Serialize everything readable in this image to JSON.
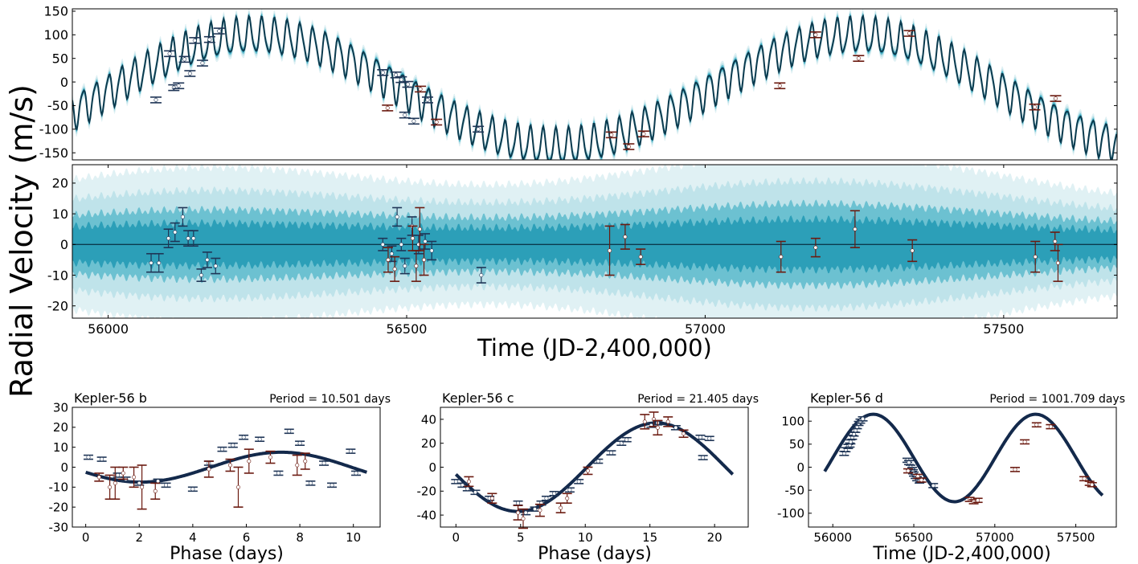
{
  "figure": {
    "ylabel_shared": "Radial Velocity (m/s)",
    "xlabel_time": "Time (JD-2,400,000)"
  },
  "colors": {
    "model_line": "#0b3a4e",
    "band_dark": "#2c9fb8",
    "band_mid": "#6cc1d1",
    "band_light": "#bfe3ea",
    "band_faint": "#e0f1f4",
    "inst_red": "#6b1a10",
    "inst_blue": "#1f3556",
    "kepler_curve": "#13294b"
  },
  "chart_data": [
    {
      "id": "rv_time_series",
      "type": "line",
      "title": "",
      "xlabel": "",
      "ylabel": "",
      "xlim": [
        55940,
        57690
      ],
      "ylim": [
        -165,
        155
      ],
      "yticks": [
        -150,
        -100,
        -50,
        0,
        50,
        100,
        150
      ],
      "xticks": [],
      "model": {
        "mean_offset": 0,
        "long_period": 1001.709,
        "long_amp": 118,
        "long_phase_peak": 56250,
        "short_period": 21.405,
        "short_amp": 36,
        "short_period_2": 10.501,
        "short_amp_2": 7
      },
      "series": [
        {
          "instrument": "blue",
          "points": [
            [
              56080,
              -38
            ],
            [
              56103,
              60
            ],
            [
              56110,
              -12
            ],
            [
              56118,
              -8
            ],
            [
              56128,
              48
            ],
            [
              56137,
              18
            ],
            [
              56145,
              88
            ],
            [
              56158,
              40
            ],
            [
              56170,
              90
            ],
            [
              56186,
              108
            ],
            [
              56460,
              20
            ],
            [
              56482,
              15
            ],
            [
              56491,
              5
            ],
            [
              56497,
              -70
            ],
            [
              56502,
              -5
            ],
            [
              56512,
              -83
            ],
            [
              56535,
              -38
            ],
            [
              56620,
              -100
            ]
          ]
        },
        {
          "instrument": "red",
          "points": [
            [
              56468,
              -55
            ],
            [
              56523,
              -15
            ],
            [
              56550,
              -85
            ],
            [
              56843,
              -112
            ],
            [
              56872,
              -137
            ],
            [
              56897,
              -110
            ],
            [
              57125,
              -8
            ],
            [
              57185,
              100
            ],
            [
              57257,
              50
            ],
            [
              57342,
              103
            ],
            [
              57552,
              -53
            ],
            [
              57587,
              -35
            ]
          ]
        }
      ]
    },
    {
      "id": "rv_residuals",
      "type": "scatter",
      "title": "",
      "xlabel": "Time (JD-2,400,000)",
      "ylabel": "",
      "xlim": [
        55940,
        57690
      ],
      "ylim": [
        -24,
        26
      ],
      "yticks": [
        -20,
        -10,
        0,
        10,
        20
      ],
      "xticks": [
        56000,
        56500,
        57000,
        57500
      ],
      "series": [
        {
          "instrument": "blue",
          "points": [
            [
              56072,
              -6,
              3
            ],
            [
              56085,
              -6,
              3
            ],
            [
              56101,
              2,
              3
            ],
            [
              56112,
              4,
              3
            ],
            [
              56125,
              9,
              3
            ],
            [
              56134,
              2,
              2.5
            ],
            [
              56143,
              2,
              2.5
            ],
            [
              56156,
              -10,
              2
            ],
            [
              56166,
              -5,
              2.5
            ],
            [
              56180,
              -7,
              2.5
            ],
            [
              56460,
              0,
              2
            ],
            [
              56475,
              -3,
              2.5
            ],
            [
              56484,
              9,
              3
            ],
            [
              56491,
              0,
              2
            ],
            [
              56497,
              -7,
              2.5
            ],
            [
              56509,
              6,
              3
            ],
            [
              56520,
              0,
              3
            ],
            [
              56531,
              1,
              2.5
            ],
            [
              56542,
              -2,
              3
            ],
            [
              56625,
              -10,
              2.5
            ]
          ]
        },
        {
          "instrument": "red",
          "points": [
            [
              56469,
              -5,
              4
            ],
            [
              56480,
              -8,
              4
            ],
            [
              56510,
              2,
              4
            ],
            [
              56516,
              -7,
              5
            ],
            [
              56522,
              5,
              7
            ],
            [
              56529,
              -5,
              5
            ],
            [
              56840,
              -2,
              8
            ],
            [
              56866,
              2.5,
              4
            ],
            [
              56892,
              -4,
              2.5
            ],
            [
              57127,
              -4,
              5
            ],
            [
              57185,
              -1,
              3
            ],
            [
              57251,
              5,
              6
            ],
            [
              57347,
              -2,
              3.5
            ],
            [
              57553,
              -4,
              5
            ],
            [
              57586,
              1,
              3
            ],
            [
              57591,
              -6,
              6
            ]
          ]
        }
      ]
    },
    {
      "id": "kepler56b",
      "type": "scatter",
      "title": "Kepler-56 b",
      "subtitle": "Period = 10.501 days",
      "xlabel": "Phase (days)",
      "ylabel": "",
      "xlim": [
        -0.5,
        11
      ],
      "ylim": [
        -30,
        30
      ],
      "yticks": [
        -30,
        -20,
        -10,
        0,
        10,
        20,
        30
      ],
      "xticks": [
        0,
        2,
        4,
        6,
        8,
        10
      ],
      "curve": {
        "period": 10.501,
        "amp": 7.5,
        "peak_phase": 7.3
      },
      "series": [
        {
          "instrument": "blue",
          "points": [
            [
              0.1,
              5
            ],
            [
              0.6,
              4
            ],
            [
              1.2,
              -4
            ],
            [
              1.5,
              -6
            ],
            [
              2.0,
              -8
            ],
            [
              2.7,
              -7
            ],
            [
              3.0,
              -9
            ],
            [
              4.0,
              -11
            ],
            [
              4.6,
              2
            ],
            [
              5.1,
              9
            ],
            [
              5.5,
              11
            ],
            [
              5.9,
              15
            ],
            [
              6.5,
              14
            ],
            [
              7.2,
              -3
            ],
            [
              7.6,
              18
            ],
            [
              8.0,
              12
            ],
            [
              8.4,
              -8
            ],
            [
              8.9,
              2
            ],
            [
              9.2,
              -9
            ],
            [
              9.9,
              8
            ],
            [
              10.1,
              -3
            ]
          ]
        },
        {
          "instrument": "red",
          "points": [
            [
              0.5,
              -5,
              2
            ],
            [
              0.9,
              -10,
              6
            ],
            [
              1.1,
              -8,
              8
            ],
            [
              1.4,
              -3,
              3
            ],
            [
              1.8,
              -5,
              5
            ],
            [
              2.1,
              -10,
              11
            ],
            [
              2.6,
              -12,
              4
            ],
            [
              4.6,
              -1,
              4
            ],
            [
              5.4,
              1,
              3
            ],
            [
              5.7,
              -10,
              10
            ],
            [
              6.1,
              3,
              6
            ],
            [
              6.9,
              5,
              3
            ],
            [
              7.9,
              1,
              5
            ],
            [
              8.2,
              3,
              4
            ]
          ]
        }
      ]
    },
    {
      "id": "kepler56c",
      "type": "scatter",
      "title": "Kepler-56 c",
      "subtitle": "Period = 21.405 days",
      "xlabel": "Phase (days)",
      "ylabel": "",
      "xlim": [
        -1.2,
        22.6
      ],
      "ylim": [
        -50,
        50
      ],
      "yticks": [
        -40,
        -20,
        0,
        20,
        40
      ],
      "xticks": [
        0,
        5,
        10,
        15,
        20
      ],
      "curve": {
        "period": 21.405,
        "amp": 37,
        "peak_phase": 15.5
      },
      "series": [
        {
          "instrument": "blue",
          "points": [
            [
              0,
              -12
            ],
            [
              0.5,
              -15
            ],
            [
              0.9,
              -18
            ],
            [
              1.5,
              -21
            ],
            [
              2.6,
              -26
            ],
            [
              4.8,
              -30
            ],
            [
              5.4,
              -38
            ],
            [
              6.1,
              -35
            ],
            [
              6.6,
              -30
            ],
            [
              7.0,
              -26
            ],
            [
              7.6,
              -22
            ],
            [
              8.8,
              -19
            ],
            [
              9.5,
              -12
            ],
            [
              11.0,
              5
            ],
            [
              12.0,
              12
            ],
            [
              12.8,
              20
            ],
            [
              13.2,
              23
            ],
            [
              15.1,
              35
            ],
            [
              15.6,
              37
            ],
            [
              17.0,
              33
            ],
            [
              18.9,
              25
            ],
            [
              19.1,
              8
            ],
            [
              19.6,
              24
            ]
          ]
        },
        {
          "instrument": "red",
          "points": [
            [
              1.0,
              -12,
              4
            ],
            [
              2.8,
              -26,
              4
            ],
            [
              4.8,
              -38,
              6
            ],
            [
              5.2,
              -43,
              8
            ],
            [
              6.5,
              -36,
              5
            ],
            [
              8.1,
              -34,
              4
            ],
            [
              8.6,
              -26,
              4
            ],
            [
              10.2,
              -3,
              3
            ],
            [
              14.6,
              38,
              6
            ],
            [
              15.3,
              40,
              6
            ],
            [
              15.6,
              33,
              6
            ],
            [
              16.4,
              38,
              4
            ],
            [
              17.6,
              28,
              3
            ]
          ]
        }
      ]
    },
    {
      "id": "kepler56d",
      "type": "scatter",
      "title": "Kepler-56 d",
      "subtitle": "Period = 1001.709 days",
      "xlabel": "Time (JD-2,400,000)",
      "ylabel": "",
      "xlim": [
        55850,
        57750
      ],
      "ylim": [
        -130,
        130
      ],
      "yticks": [
        -100,
        -50,
        0,
        50,
        100
      ],
      "xticks": [
        56000,
        56500,
        57000,
        57500
      ],
      "curve": {
        "period": 1001.709,
        "amp": 95,
        "offset": 20,
        "peak_time": 56250,
        "x0": 55950,
        "x1": 57665
      },
      "series": [
        {
          "instrument": "blue",
          "points": [
            [
              56070,
              30
            ],
            [
              56080,
              38
            ],
            [
              56095,
              45
            ],
            [
              56105,
              48
            ],
            [
              56110,
              55
            ],
            [
              56120,
              65
            ],
            [
              56130,
              72
            ],
            [
              56140,
              80
            ],
            [
              56150,
              88
            ],
            [
              56160,
              95
            ],
            [
              56170,
              100
            ],
            [
              56185,
              105
            ],
            [
              56460,
              15
            ],
            [
              56470,
              10
            ],
            [
              56480,
              0
            ],
            [
              56490,
              -5
            ],
            [
              56495,
              -10
            ],
            [
              56500,
              -15
            ],
            [
              56510,
              -20
            ],
            [
              56520,
              -25
            ],
            [
              56535,
              -30
            ],
            [
              56540,
              -28
            ],
            [
              56620,
              -40
            ]
          ]
        },
        {
          "instrument": "red",
          "points": [
            [
              56465,
              -8
            ],
            [
              56525,
              -20
            ],
            [
              56548,
              -28
            ],
            [
              56845,
              -70
            ],
            [
              56870,
              -75
            ],
            [
              56895,
              -72
            ],
            [
              57125,
              -5
            ],
            [
              57185,
              55
            ],
            [
              57258,
              92
            ],
            [
              57345,
              88
            ],
            [
              57552,
              -25
            ],
            [
              57585,
              -35
            ],
            [
              57600,
              -38
            ]
          ]
        }
      ]
    }
  ]
}
